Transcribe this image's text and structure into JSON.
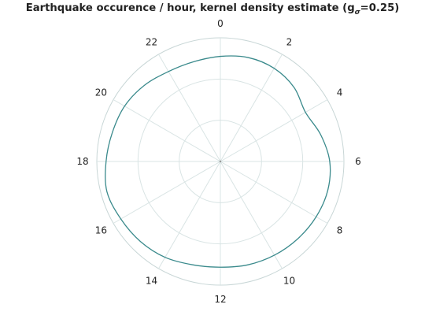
{
  "chart_data": {
    "type": "polar-line",
    "title_prefix": "Earthquake occurence / hour, kernel density estimate (g",
    "title_subscript": "σ",
    "title_suffix": "=0.25)",
    "theta_ticks": [
      "0",
      "2",
      "4",
      "6",
      "8",
      "10",
      "12",
      "14",
      "16",
      "18",
      "20",
      "22"
    ],
    "hours_per_cycle": 24,
    "direction": "clockwise",
    "zero_at": "top",
    "radial_gridlines": [
      0.3333,
      0.6667,
      1.0
    ],
    "series": [
      {
        "color": "#3a8a8c",
        "x": [
          0,
          1,
          2,
          3,
          4,
          5,
          6,
          7,
          8,
          9,
          10,
          11,
          12,
          13,
          14,
          15,
          16,
          17,
          18,
          19,
          20,
          21,
          22,
          23
        ],
        "r": [
          0.85,
          0.87,
          0.87,
          0.845,
          0.795,
          0.84,
          0.885,
          0.9,
          0.895,
          0.885,
          0.875,
          0.865,
          0.855,
          0.865,
          0.895,
          0.915,
          0.93,
          0.95,
          0.925,
          0.905,
          0.895,
          0.87,
          0.84,
          0.835
        ]
      }
    ]
  },
  "colors": {
    "grid": "#d9e4e4",
    "series": "#3a8a8c"
  }
}
